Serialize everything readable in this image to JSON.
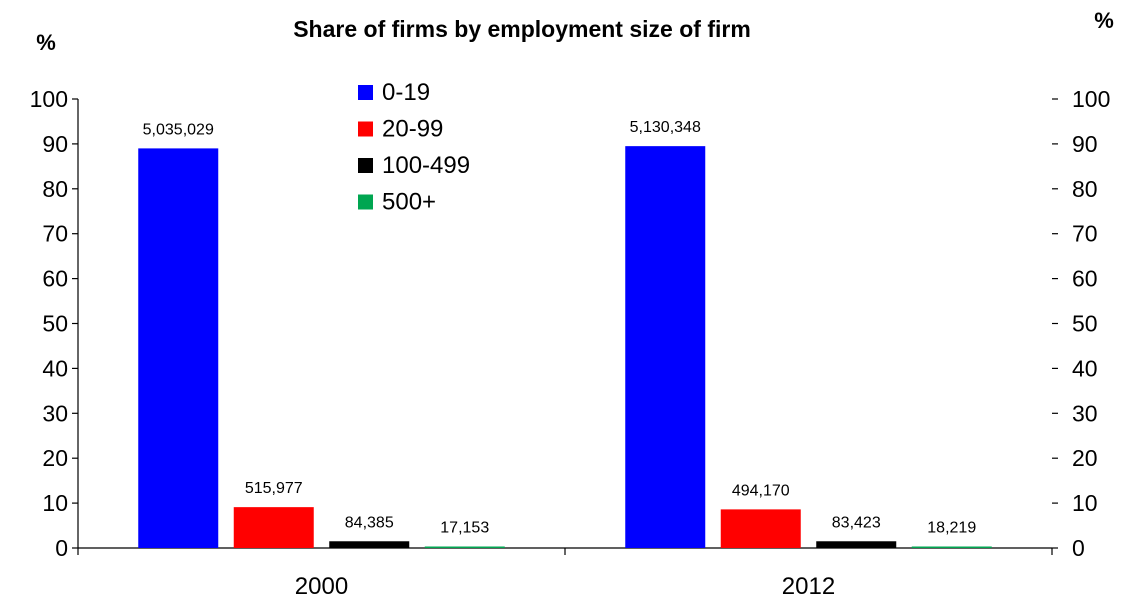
{
  "chart_data": {
    "type": "bar",
    "title": "Share of  firms by employment size of firm",
    "ylabel_left": "%",
    "ylabel_right": "%",
    "ylim": [
      0,
      100
    ],
    "yticks": [
      0,
      10,
      20,
      30,
      40,
      50,
      60,
      70,
      80,
      90,
      100
    ],
    "categories": [
      "2000",
      "2012"
    ],
    "legend_position": "top-center",
    "grid": false,
    "series": [
      {
        "name": "0-19",
        "color": "#0000ff",
        "values": [
          89.0,
          89.5
        ],
        "labels": [
          "5,035,029",
          "5,130,348"
        ]
      },
      {
        "name": "20-99",
        "color": "#ff0000",
        "values": [
          9.1,
          8.6
        ],
        "labels": [
          "515,977",
          "494,170"
        ]
      },
      {
        "name": "100-499",
        "color": "#000000",
        "values": [
          1.5,
          1.5
        ],
        "labels": [
          "84,385",
          "83,423"
        ]
      },
      {
        "name": "500+",
        "color": "#00a651",
        "values": [
          0.3,
          0.3
        ],
        "labels": [
          "17,153",
          "18,219"
        ]
      }
    ]
  }
}
